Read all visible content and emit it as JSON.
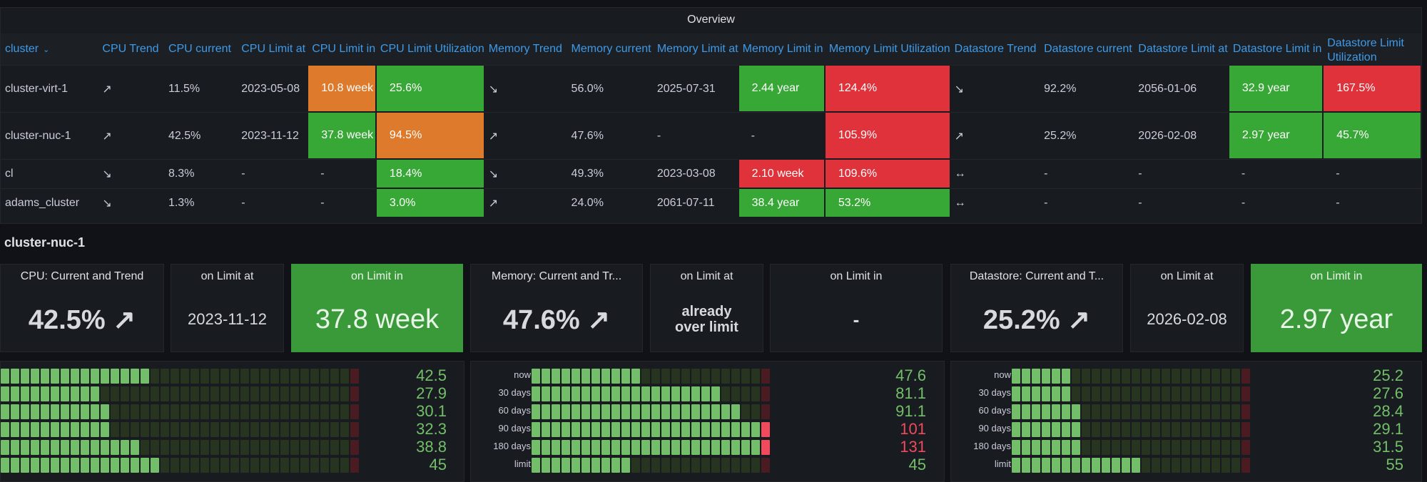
{
  "overview": {
    "title": "Overview",
    "columns": [
      "cluster",
      "CPU Trend",
      "CPU current",
      "CPU Limit at",
      "CPU Limit in",
      "CPU Limit Utilization",
      "Memory Trend",
      "Memory current",
      "Memory Limit at",
      "Memory Limit in",
      "Memory Limit Utilization",
      "Datastore Trend",
      "Datastore current",
      "Datastore Limit at",
      "Datastore Limit in",
      "Datastore Limit Utilization"
    ],
    "sort_icon": "chevron-down-icon",
    "rows": [
      [
        "cluster-virt-1",
        "↗",
        "11.5%",
        "2023-05-08",
        "10.8 week",
        "25.6%",
        "↘",
        "56.0%",
        "2025-07-31",
        "2.44 year",
        "124.4%",
        "↘",
        "92.2%",
        "2056-01-06",
        "32.9 year",
        "167.5%"
      ],
      [
        "cluster-nuc-1",
        "↗",
        "42.5%",
        "2023-11-12",
        "37.8 week",
        "94.5%",
        "↗",
        "47.6%",
        "-",
        "-",
        "105.9%",
        "↗",
        "25.2%",
        "2026-02-08",
        "2.97 year",
        "45.7%"
      ],
      [
        "cl",
        "↘",
        "8.3%",
        "-",
        "-",
        "18.4%",
        "↘",
        "49.3%",
        "2023-03-08",
        "2.10 week",
        "109.6%",
        "↔",
        "-",
        "-",
        "-",
        "-"
      ],
      [
        "adams_cluster",
        "↘",
        "1.3%",
        "-",
        "-",
        "3.0%",
        "↗",
        "24.0%",
        "2061-07-11",
        "38.4 year",
        "53.2%",
        "↔",
        "-",
        "-",
        "-",
        "-"
      ]
    ],
    "cell_colors": {
      "orange": "#de7a2c",
      "green": "#37a836",
      "red": "#e0323a"
    }
  },
  "section": {
    "title": "cluster-nuc-1"
  },
  "stats": {
    "cpu_title": "CPU: Current and Trend",
    "cpu_value": "42.5% ↗",
    "cpu_limit_at_title": "on Limit at",
    "cpu_limit_at_value": "2023-11-12",
    "cpu_limit_in_title": "on Limit in",
    "cpu_limit_in_value": "37.8 week",
    "mem_title": "Memory: Current and Tr...",
    "mem_value": "47.6% ↗",
    "mem_limit_at_title": "on Limit at",
    "mem_limit_at_value": "already over limit",
    "mem_limit_in_title": "on Limit in",
    "mem_limit_in_value": "-",
    "ds_title": "Datastore: Current and T...",
    "ds_value": "25.2% ↗",
    "ds_limit_at_title": "on Limit at",
    "ds_limit_at_value": "2026-02-08",
    "ds_limit_in_title": "on Limit in",
    "ds_limit_in_value": "2.97 year"
  },
  "gauges": {
    "labels": [
      "now",
      "30 days",
      "60 days",
      "90 days",
      "180 days",
      "limit"
    ],
    "cpu": [
      "42.5",
      "27.9",
      "30.1",
      "32.3",
      "38.8",
      "45"
    ],
    "memory": [
      "47.6",
      "81.1",
      "91.1",
      "101",
      "131",
      "45"
    ],
    "datastore": [
      "25.2",
      "27.6",
      "28.4",
      "29.1",
      "31.5",
      "55"
    ]
  }
}
